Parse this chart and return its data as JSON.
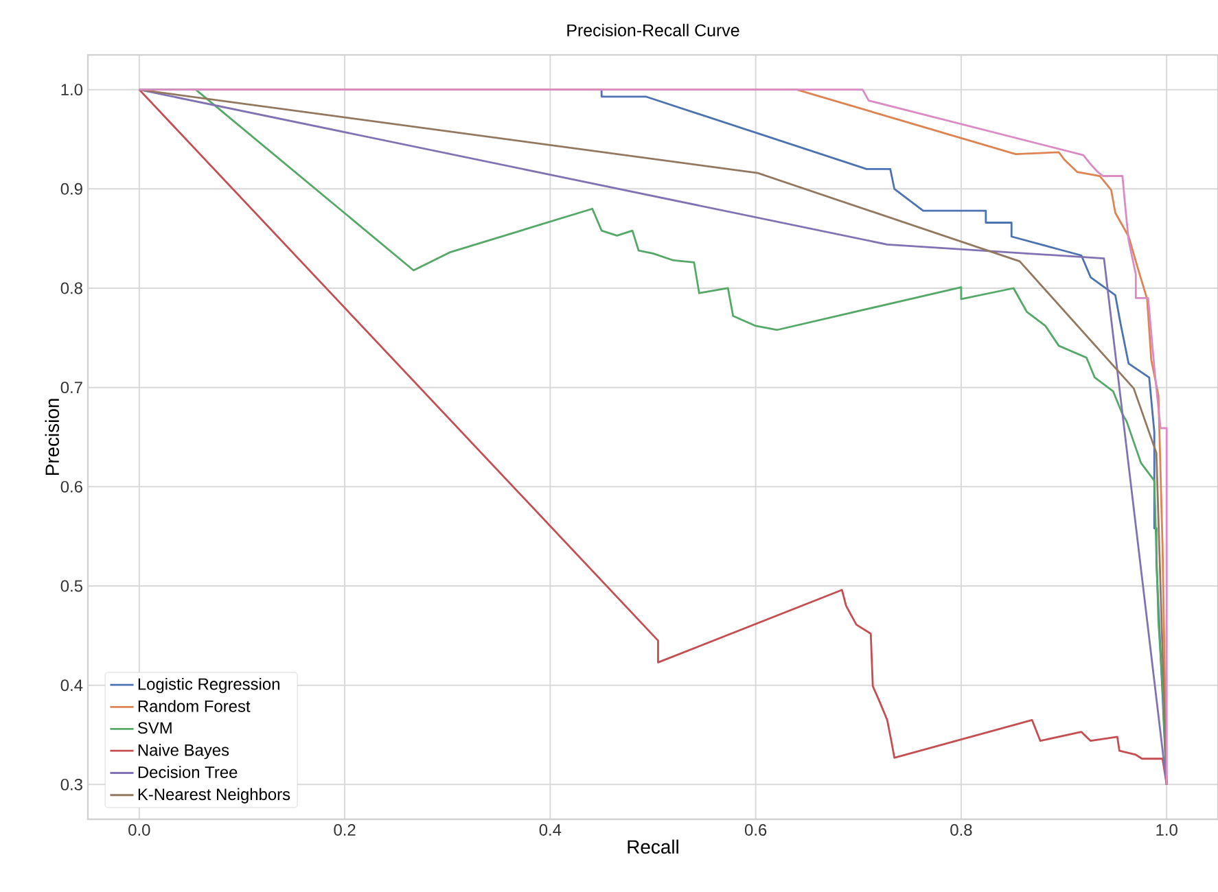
{
  "chart_data": {
    "type": "line",
    "title": "Precision-Recall Curve",
    "xlabel": "Recall",
    "ylabel": "Precision",
    "xlim": [
      -0.05,
      1.05
    ],
    "ylim": [
      0.265,
      1.035
    ],
    "xticks": [
      {
        "value": 0,
        "label": "0.0"
      },
      0.2,
      0.4,
      0.6,
      0.8,
      {
        "value": 1,
        "label": "1.0"
      }
    ],
    "yticks": [
      0.3,
      0.4,
      0.5,
      0.6,
      0.7,
      0.8,
      0.9,
      {
        "value": 1,
        "label": "1.0"
      }
    ],
    "grid": true,
    "legend": "bottom left",
    "line_style": "solid",
    "series": [
      {
        "name": "Logistic Regression",
        "color": "#4c72b0",
        "x": [
          0,
          0.45,
          0.45,
          0.493,
          0.708,
          0.731,
          0.735,
          0.763,
          0.824,
          0.824,
          0.849,
          0.849,
          0.899,
          0.917,
          0.926,
          0.95,
          0.955,
          0.963,
          0.983,
          0.988,
          0.988,
          0.99,
          0.99,
          1.0
        ],
        "values": [
          1,
          1,
          0.993,
          0.993,
          0.92,
          0.92,
          0.9,
          0.878,
          0.878,
          0.866,
          0.866,
          0.852,
          0.838,
          0.833,
          0.811,
          0.793,
          0.765,
          0.724,
          0.71,
          0.655,
          0.558,
          0.558,
          0.524,
          0.3
        ]
      },
      {
        "name": "Random Forest",
        "color": "#dd8452",
        "x": [
          0,
          0.64,
          0.853,
          0.895,
          0.9,
          0.913,
          0.935,
          0.946,
          0.95,
          0.963,
          0.972,
          0.981,
          0.985,
          0.992,
          0.996,
          1.0
        ],
        "values": [
          1,
          1,
          0.935,
          0.937,
          0.93,
          0.917,
          0.913,
          0.899,
          0.876,
          0.852,
          0.82,
          0.789,
          0.728,
          0.692,
          0.54,
          0.3
        ]
      },
      {
        "name": "SVM",
        "color": "#55a868",
        "x": [
          0,
          0.055,
          0.267,
          0.302,
          0.441,
          0.45,
          0.465,
          0.48,
          0.486,
          0.5,
          0.52,
          0.54,
          0.545,
          0.573,
          0.578,
          0.6,
          0.621,
          0.8,
          0.8,
          0.851,
          0.864,
          0.882,
          0.895,
          0.922,
          0.93,
          0.948,
          0.957,
          0.961,
          0.975,
          0.988,
          0.992,
          0.996,
          1.0
        ],
        "values": [
          1,
          1,
          0.818,
          0.836,
          0.88,
          0.858,
          0.853,
          0.858,
          0.838,
          0.835,
          0.828,
          0.826,
          0.795,
          0.8,
          0.772,
          0.762,
          0.758,
          0.801,
          0.789,
          0.8,
          0.776,
          0.762,
          0.742,
          0.73,
          0.71,
          0.696,
          0.673,
          0.666,
          0.624,
          0.606,
          0.464,
          0.399,
          0.3
        ]
      },
      {
        "name": "Naive Bayes",
        "color": "#c44e52",
        "x": [
          0,
          0.505,
          0.505,
          0.684,
          0.688,
          0.698,
          0.712,
          0.714,
          0.72,
          0.728,
          0.732,
          0.735,
          0.869,
          0.877,
          0.917,
          0.926,
          0.952,
          0.954,
          0.97,
          0.976,
          0.996,
          1.0
        ],
        "values": [
          1,
          0.445,
          0.423,
          0.496,
          0.48,
          0.461,
          0.452,
          0.399,
          0.385,
          0.365,
          0.344,
          0.327,
          0.365,
          0.344,
          0.353,
          0.344,
          0.348,
          0.334,
          0.33,
          0.326,
          0.326,
          0.3
        ]
      },
      {
        "name": "Decision Tree",
        "color": "#8172b3",
        "x": [
          0,
          0.728,
          0.939,
          1.0
        ],
        "values": [
          1,
          0.844,
          0.83,
          0.3
        ]
      },
      {
        "name": "K-Nearest Neighbors",
        "color": "#937860",
        "x": [
          0,
          0.602,
          0.857,
          0.968,
          0.99,
          1.0
        ],
        "values": [
          1,
          0.916,
          0.827,
          0.699,
          0.634,
          0.3
        ]
      },
      {
        "color": "#da8bc3",
        "x": [
          0,
          0.704,
          0.71,
          0.919,
          0.925,
          0.933,
          0.938,
          0.957,
          0.959,
          0.963,
          0.97,
          0.97,
          0.982,
          0.988,
          0.994,
          1.0,
          1.0
        ],
        "values": [
          1,
          1,
          0.989,
          0.934,
          0.926,
          0.917,
          0.913,
          0.913,
          0.89,
          0.848,
          0.814,
          0.79,
          0.79,
          0.72,
          0.659,
          0.659,
          0.3
        ]
      }
    ]
  }
}
